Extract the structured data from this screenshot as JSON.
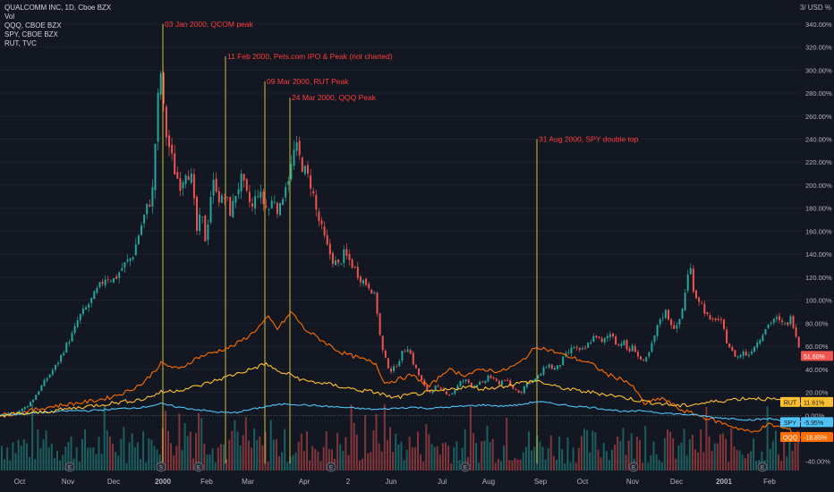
{
  "legend": {
    "main": "QUALCOMM INC, 1D, Cboe BZX",
    "items": [
      "Vol",
      "QQQ, CBOE BZX",
      "SPY, CBOE BZX",
      "RUT, TVC"
    ]
  },
  "axis_unit": "3/ USD %",
  "colors": {
    "background": "#131722",
    "grid": "#1e222d",
    "axis_text": "#b2b5be",
    "up": "#26a69a",
    "down": "#ef5350",
    "qqq": "#ff6d00",
    "spy": "#4fc3f7",
    "rut": "#ffc02e",
    "annotation_line": "#ffeb3b",
    "annotation_text": "#ff3b3b"
  },
  "chart_data": {
    "type": "line",
    "title": "QUALCOMM INC, 1D, Cboe BZX",
    "y_axis": {
      "scale": "percent",
      "ticks": [
        "-40.00%",
        "0.00%",
        "20.00%",
        "40.00%",
        "60.00%",
        "80.00%",
        "100.00%",
        "120.00%",
        "140.00%",
        "160.00%",
        "180.00%",
        "200.00%",
        "220.00%",
        "240.00%",
        "260.00%",
        "280.00%",
        "300.00%",
        "320.00%",
        "340.00%"
      ],
      "range": [
        -48,
        350
      ]
    },
    "x_axis": {
      "ticks": [
        "Oct",
        "Nov",
        "Dec",
        "2000",
        "Feb",
        "Mar",
        "Apr",
        "2",
        "Jun",
        "Jul",
        "Aug",
        "Sep",
        "Oct",
        "Nov",
        "Dec",
        "2001",
        "Feb"
      ]
    },
    "series": [
      {
        "name": "QCOM",
        "style": "candlestick",
        "points": [
          [
            0,
            0
          ],
          [
            20,
            3
          ],
          [
            30,
            8
          ],
          [
            38,
            15
          ],
          [
            46,
            25
          ],
          [
            55,
            35
          ],
          [
            64,
            45
          ],
          [
            72,
            58
          ],
          [
            82,
            72
          ],
          [
            88,
            85
          ],
          [
            98,
            95
          ],
          [
            108,
            108
          ],
          [
            118,
            120
          ],
          [
            128,
            118
          ],
          [
            138,
            130
          ],
          [
            148,
            138
          ],
          [
            156,
            160
          ],
          [
            164,
            180
          ],
          [
            170,
            190
          ],
          [
            176,
            270
          ],
          [
            180,
            300
          ],
          [
            184,
            250
          ],
          [
            190,
            230
          ],
          [
            196,
            210
          ],
          [
            202,
            200
          ],
          [
            208,
            215
          ],
          [
            214,
            205
          ],
          [
            220,
            160
          ],
          [
            225,
            175
          ],
          [
            230,
            150
          ],
          [
            235,
            190
          ],
          [
            240,
            205
          ],
          [
            246,
            185
          ],
          [
            252,
            190
          ],
          [
            258,
            175
          ],
          [
            264,
            195
          ],
          [
            270,
            205
          ],
          [
            276,
            190
          ],
          [
            282,
            180
          ],
          [
            288,
            195
          ],
          [
            294,
            185
          ],
          [
            300,
            178
          ],
          [
            306,
            190
          ],
          [
            312,
            175
          ],
          [
            318,
            200
          ],
          [
            324,
            210
          ],
          [
            330,
            235
          ],
          [
            336,
            220
          ],
          [
            342,
            210
          ],
          [
            348,
            200
          ],
          [
            354,
            175
          ],
          [
            360,
            160
          ],
          [
            366,
            145
          ],
          [
            372,
            135
          ],
          [
            378,
            130
          ],
          [
            384,
            140
          ],
          [
            390,
            135
          ],
          [
            396,
            128
          ],
          [
            402,
            120
          ],
          [
            408,
            115
          ],
          [
            414,
            112
          ],
          [
            420,
            100
          ],
          [
            426,
            60
          ],
          [
            432,
            45
          ],
          [
            438,
            38
          ],
          [
            444,
            45
          ],
          [
            450,
            55
          ],
          [
            456,
            60
          ],
          [
            462,
            45
          ],
          [
            468,
            35
          ],
          [
            474,
            25
          ],
          [
            480,
            20
          ],
          [
            486,
            25
          ],
          [
            492,
            22
          ],
          [
            498,
            20
          ],
          [
            504,
            18
          ],
          [
            510,
            24
          ],
          [
            516,
            30
          ],
          [
            522,
            30
          ],
          [
            528,
            25
          ],
          [
            534,
            28
          ],
          [
            540,
            27
          ],
          [
            546,
            35
          ],
          [
            552,
            30
          ],
          [
            558,
            28
          ],
          [
            564,
            32
          ],
          [
            570,
            25
          ],
          [
            576,
            22
          ],
          [
            582,
            20
          ],
          [
            588,
            28
          ],
          [
            594,
            30
          ],
          [
            600,
            32
          ],
          [
            606,
            38
          ],
          [
            612,
            45
          ],
          [
            618,
            40
          ],
          [
            624,
            42
          ],
          [
            630,
            50
          ],
          [
            636,
            55
          ],
          [
            642,
            60
          ],
          [
            648,
            55
          ],
          [
            654,
            58
          ],
          [
            660,
            65
          ],
          [
            666,
            70
          ],
          [
            672,
            62
          ],
          [
            678,
            68
          ],
          [
            684,
            72
          ],
          [
            690,
            60
          ],
          [
            696,
            65
          ],
          [
            702,
            55
          ],
          [
            708,
            60
          ],
          [
            714,
            50
          ],
          [
            720,
            45
          ],
          [
            726,
            55
          ],
          [
            732,
            70
          ],
          [
            738,
            85
          ],
          [
            744,
            90
          ],
          [
            750,
            80
          ],
          [
            756,
            75
          ],
          [
            762,
            90
          ],
          [
            768,
            120
          ],
          [
            772,
            127
          ],
          [
            776,
            105
          ],
          [
            782,
            100
          ],
          [
            788,
            90
          ],
          [
            794,
            80
          ],
          [
            800,
            85
          ],
          [
            806,
            80
          ],
          [
            812,
            65
          ],
          [
            818,
            55
          ],
          [
            824,
            50
          ],
          [
            830,
            55
          ],
          [
            836,
            52
          ],
          [
            842,
            60
          ],
          [
            848,
            65
          ],
          [
            854,
            75
          ],
          [
            860,
            80
          ],
          [
            866,
            85
          ],
          [
            872,
            80
          ],
          [
            878,
            78
          ],
          [
            884,
            85
          ],
          [
            890,
            70
          ],
          [
            895,
            52
          ]
        ],
        "last_value": "51.60%",
        "last_value_color": "#ef5350"
      },
      {
        "name": "QQQ",
        "points": [
          [
            0,
            0
          ],
          [
            20,
            2
          ],
          [
            40,
            5
          ],
          [
            60,
            8
          ],
          [
            80,
            10
          ],
          [
            100,
            12
          ],
          [
            120,
            15
          ],
          [
            140,
            20
          ],
          [
            160,
            28
          ],
          [
            180,
            45
          ],
          [
            200,
            40
          ],
          [
            220,
            50
          ],
          [
            240,
            55
          ],
          [
            260,
            60
          ],
          [
            280,
            70
          ],
          [
            300,
            85
          ],
          [
            310,
            75
          ],
          [
            326,
            90
          ],
          [
            340,
            75
          ],
          [
            360,
            65
          ],
          [
            380,
            55
          ],
          [
            400,
            50
          ],
          [
            420,
            45
          ],
          [
            430,
            28
          ],
          [
            440,
            30
          ],
          [
            460,
            35
          ],
          [
            480,
            25
          ],
          [
            500,
            40
          ],
          [
            520,
            35
          ],
          [
            540,
            40
          ],
          [
            560,
            38
          ],
          [
            580,
            45
          ],
          [
            600,
            60
          ],
          [
            620,
            55
          ],
          [
            640,
            50
          ],
          [
            660,
            45
          ],
          [
            680,
            35
          ],
          [
            700,
            30
          ],
          [
            710,
            22
          ],
          [
            720,
            10
          ],
          [
            740,
            15
          ],
          [
            760,
            5
          ],
          [
            780,
            0
          ],
          [
            800,
            -5
          ],
          [
            820,
            -10
          ],
          [
            840,
            -15
          ],
          [
            860,
            -8
          ],
          [
            880,
            -12
          ],
          [
            895,
            -18.85
          ]
        ],
        "last_value": "-18.85%"
      },
      {
        "name": "SPY",
        "points": [
          [
            0,
            0
          ],
          [
            20,
            1
          ],
          [
            40,
            2
          ],
          [
            60,
            3
          ],
          [
            80,
            4
          ],
          [
            100,
            4
          ],
          [
            120,
            5
          ],
          [
            140,
            6
          ],
          [
            160,
            7
          ],
          [
            180,
            10
          ],
          [
            200,
            7
          ],
          [
            220,
            5
          ],
          [
            240,
            3
          ],
          [
            260,
            2
          ],
          [
            280,
            5
          ],
          [
            300,
            8
          ],
          [
            320,
            10
          ],
          [
            340,
            9
          ],
          [
            360,
            8
          ],
          [
            380,
            7
          ],
          [
            400,
            6
          ],
          [
            420,
            5
          ],
          [
            440,
            6
          ],
          [
            460,
            7
          ],
          [
            480,
            6
          ],
          [
            500,
            7
          ],
          [
            520,
            8
          ],
          [
            540,
            9
          ],
          [
            560,
            8
          ],
          [
            580,
            9
          ],
          [
            600,
            12
          ],
          [
            620,
            10
          ],
          [
            640,
            8
          ],
          [
            660,
            7
          ],
          [
            680,
            5
          ],
          [
            700,
            3
          ],
          [
            720,
            4
          ],
          [
            740,
            2
          ],
          [
            760,
            1
          ],
          [
            780,
            0
          ],
          [
            800,
            -2
          ],
          [
            820,
            -3
          ],
          [
            840,
            -4
          ],
          [
            860,
            -3
          ],
          [
            880,
            -5
          ],
          [
            895,
            -5.95
          ]
        ],
        "last_value": "-5.95%"
      },
      {
        "name": "RUT",
        "points": [
          [
            0,
            0
          ],
          [
            20,
            1
          ],
          [
            40,
            2
          ],
          [
            60,
            4
          ],
          [
            80,
            6
          ],
          [
            100,
            8
          ],
          [
            120,
            10
          ],
          [
            140,
            12
          ],
          [
            160,
            14
          ],
          [
            180,
            20
          ],
          [
            200,
            22
          ],
          [
            220,
            25
          ],
          [
            240,
            30
          ],
          [
            260,
            35
          ],
          [
            280,
            40
          ],
          [
            298,
            45
          ],
          [
            310,
            38
          ],
          [
            326,
            35
          ],
          [
            340,
            30
          ],
          [
            360,
            28
          ],
          [
            380,
            25
          ],
          [
            400,
            22
          ],
          [
            420,
            20
          ],
          [
            440,
            15
          ],
          [
            460,
            18
          ],
          [
            480,
            20
          ],
          [
            500,
            22
          ],
          [
            520,
            25
          ],
          [
            540,
            23
          ],
          [
            560,
            25
          ],
          [
            580,
            28
          ],
          [
            600,
            30
          ],
          [
            620,
            25
          ],
          [
            640,
            22
          ],
          [
            660,
            20
          ],
          [
            680,
            18
          ],
          [
            700,
            15
          ],
          [
            720,
            12
          ],
          [
            740,
            10
          ],
          [
            760,
            8
          ],
          [
            780,
            10
          ],
          [
            800,
            12
          ],
          [
            820,
            14
          ],
          [
            840,
            15
          ],
          [
            860,
            14
          ],
          [
            880,
            12
          ],
          [
            895,
            11.61
          ]
        ],
        "last_value": "11.61%"
      }
    ],
    "annotations": [
      {
        "text": "03 Jan 2000, QCOM peak",
        "x": 182,
        "y": 340
      },
      {
        "text": "11 Feb 2000, Pets.com IPO & Peak (not charted)",
        "x": 252,
        "y": 312
      },
      {
        "text": "09 Mar 2000, RUT Peak",
        "x": 296,
        "y": 290
      },
      {
        "text": "24 Mar 2000, QQQ Peak",
        "x": 324,
        "y": 276
      },
      {
        "text": "31 Aug 2000, SPY double top",
        "x": 600,
        "y": 240
      }
    ],
    "earnings_markers": [
      "E",
      "S",
      "E",
      "E",
      "E",
      "E",
      "E",
      "E"
    ]
  }
}
